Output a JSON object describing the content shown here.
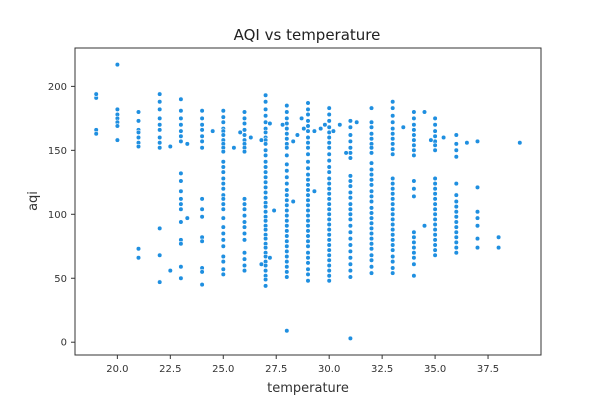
{
  "chart_data": {
    "type": "scatter",
    "title": "AQI vs temperature",
    "xlabel": "temperature",
    "ylabel": "aqi",
    "xlim": [
      18,
      40
    ],
    "ylim": [
      -10,
      230
    ],
    "xticks": [
      "20.0",
      "22.5",
      "25.0",
      "27.5",
      "30.0",
      "32.5",
      "35.0",
      "37.5"
    ],
    "xtick_values": [
      20.0,
      22.5,
      25.0,
      27.5,
      30.0,
      32.5,
      35.0,
      37.5
    ],
    "yticks": [
      "0",
      "50",
      "100",
      "150",
      "200"
    ],
    "ytick_values": [
      0,
      50,
      100,
      150,
      200
    ],
    "grid": false,
    "marker_color": "#1f8fe0",
    "points": [
      [
        19,
        166
      ],
      [
        19,
        163
      ],
      [
        19,
        191
      ],
      [
        19,
        194
      ],
      [
        20,
        217
      ],
      [
        20,
        182
      ],
      [
        20,
        178
      ],
      [
        20,
        175
      ],
      [
        20,
        172
      ],
      [
        20,
        169
      ],
      [
        20,
        158
      ],
      [
        21,
        180
      ],
      [
        21,
        173
      ],
      [
        21,
        166
      ],
      [
        21,
        164
      ],
      [
        21,
        160
      ],
      [
        21,
        156
      ],
      [
        21,
        153
      ],
      [
        21,
        73
      ],
      [
        21,
        66
      ],
      [
        22,
        194
      ],
      [
        22,
        188
      ],
      [
        22,
        182
      ],
      [
        22,
        175
      ],
      [
        22,
        170
      ],
      [
        22,
        166
      ],
      [
        22,
        160
      ],
      [
        22,
        156
      ],
      [
        22,
        152
      ],
      [
        22,
        89
      ],
      [
        22,
        68
      ],
      [
        22,
        47
      ],
      [
        22.5,
        153
      ],
      [
        22.5,
        56
      ],
      [
        23,
        190
      ],
      [
        23,
        181
      ],
      [
        23,
        175
      ],
      [
        23,
        170
      ],
      [
        23,
        165
      ],
      [
        23,
        161
      ],
      [
        23,
        157
      ],
      [
        23,
        132
      ],
      [
        23,
        126
      ],
      [
        23,
        118
      ],
      [
        23,
        112
      ],
      [
        23,
        108
      ],
      [
        23,
        104
      ],
      [
        23,
        94
      ],
      [
        23,
        80
      ],
      [
        23,
        77
      ],
      [
        23,
        59
      ],
      [
        23,
        50
      ],
      [
        23.3,
        155
      ],
      [
        23.3,
        97
      ],
      [
        24,
        181
      ],
      [
        24,
        175
      ],
      [
        24,
        170
      ],
      [
        24,
        166
      ],
      [
        24,
        161
      ],
      [
        24,
        157
      ],
      [
        24,
        152
      ],
      [
        24,
        112
      ],
      [
        24,
        104
      ],
      [
        24,
        98
      ],
      [
        24,
        82
      ],
      [
        24,
        79
      ],
      [
        24,
        58
      ],
      [
        24,
        55
      ],
      [
        24,
        45
      ],
      [
        24.5,
        165
      ],
      [
        25,
        181
      ],
      [
        25,
        176
      ],
      [
        25,
        172
      ],
      [
        25,
        167
      ],
      [
        25,
        165
      ],
      [
        25,
        162
      ],
      [
        25,
        158
      ],
      [
        25,
        155
      ],
      [
        25,
        152
      ],
      [
        25,
        149
      ],
      [
        25,
        141
      ],
      [
        25,
        137
      ],
      [
        25,
        133
      ],
      [
        25,
        128
      ],
      [
        25,
        124
      ],
      [
        25,
        120
      ],
      [
        25,
        115
      ],
      [
        25,
        112
      ],
      [
        25,
        108
      ],
      [
        25,
        104
      ],
      [
        25,
        97
      ],
      [
        25,
        90
      ],
      [
        25,
        85
      ],
      [
        25,
        80
      ],
      [
        25,
        75
      ],
      [
        25,
        67
      ],
      [
        25,
        63
      ],
      [
        25,
        57
      ],
      [
        25,
        53
      ],
      [
        25.5,
        152
      ],
      [
        26,
        180
      ],
      [
        26,
        175
      ],
      [
        26,
        171
      ],
      [
        26,
        166
      ],
      [
        26,
        162
      ],
      [
        26,
        158
      ],
      [
        26,
        155
      ],
      [
        26,
        152
      ],
      [
        26,
        149
      ],
      [
        26,
        112
      ],
      [
        26,
        108
      ],
      [
        26,
        104
      ],
      [
        26,
        99
      ],
      [
        26,
        94
      ],
      [
        26,
        90
      ],
      [
        26,
        85
      ],
      [
        26,
        80
      ],
      [
        26,
        70
      ],
      [
        26,
        65
      ],
      [
        26,
        60
      ],
      [
        26,
        56
      ],
      [
        25.8,
        164
      ],
      [
        26.3,
        160
      ],
      [
        27,
        193
      ],
      [
        27,
        188
      ],
      [
        27,
        182
      ],
      [
        27,
        177
      ],
      [
        27,
        172
      ],
      [
        27,
        167
      ],
      [
        27,
        164
      ],
      [
        27,
        160
      ],
      [
        27,
        158
      ],
      [
        27,
        155
      ],
      [
        27,
        150
      ],
      [
        27,
        146
      ],
      [
        27,
        141
      ],
      [
        27,
        137
      ],
      [
        27,
        133
      ],
      [
        27,
        129
      ],
      [
        27,
        125
      ],
      [
        27,
        121
      ],
      [
        27,
        117
      ],
      [
        27,
        113
      ],
      [
        27,
        109
      ],
      [
        27,
        106
      ],
      [
        27,
        102
      ],
      [
        27,
        98
      ],
      [
        27,
        95
      ],
      [
        27,
        91
      ],
      [
        27,
        88
      ],
      [
        27,
        84
      ],
      [
        27,
        81
      ],
      [
        27,
        77
      ],
      [
        27,
        74
      ],
      [
        27,
        70
      ],
      [
        27,
        67
      ],
      [
        27,
        63
      ],
      [
        27,
        60
      ],
      [
        27,
        56
      ],
      [
        27,
        52
      ],
      [
        27,
        49
      ],
      [
        27,
        44
      ],
      [
        26.8,
        158
      ],
      [
        26.8,
        61
      ],
      [
        27.2,
        66
      ],
      [
        27.2,
        171
      ],
      [
        27.4,
        103
      ],
      [
        28,
        185
      ],
      [
        28,
        180
      ],
      [
        28,
        175
      ],
      [
        28,
        171
      ],
      [
        28,
        167
      ],
      [
        28,
        163
      ],
      [
        28,
        159
      ],
      [
        28,
        155
      ],
      [
        28,
        152
      ],
      [
        28,
        146
      ],
      [
        28,
        139
      ],
      [
        28,
        134
      ],
      [
        28,
        129
      ],
      [
        28,
        124
      ],
      [
        28,
        119
      ],
      [
        28,
        115
      ],
      [
        28,
        111
      ],
      [
        28,
        107
      ],
      [
        28,
        103
      ],
      [
        28,
        99
      ],
      [
        28,
        95
      ],
      [
        28,
        91
      ],
      [
        28,
        87
      ],
      [
        28,
        83
      ],
      [
        28,
        79
      ],
      [
        28,
        75
      ],
      [
        28,
        71
      ],
      [
        28,
        67
      ],
      [
        28,
        63
      ],
      [
        28,
        59
      ],
      [
        28,
        55
      ],
      [
        28,
        51
      ],
      [
        28,
        9
      ],
      [
        27.8,
        170
      ],
      [
        28.3,
        157
      ],
      [
        28.5,
        162
      ],
      [
        28.7,
        175
      ],
      [
        28.8,
        167
      ],
      [
        28.3,
        110
      ],
      [
        29,
        187
      ],
      [
        29,
        182
      ],
      [
        29,
        178
      ],
      [
        29,
        173
      ],
      [
        29,
        169
      ],
      [
        29,
        165
      ],
      [
        29,
        160
      ],
      [
        29,
        156
      ],
      [
        29,
        152
      ],
      [
        29,
        147
      ],
      [
        29,
        141
      ],
      [
        29,
        136
      ],
      [
        29,
        131
      ],
      [
        29,
        127
      ],
      [
        29,
        123
      ],
      [
        29,
        119
      ],
      [
        29,
        115
      ],
      [
        29,
        111
      ],
      [
        29,
        107
      ],
      [
        29,
        103
      ],
      [
        29,
        99
      ],
      [
        29,
        95
      ],
      [
        29,
        91
      ],
      [
        29,
        87
      ],
      [
        29,
        83
      ],
      [
        29,
        79
      ],
      [
        29,
        75
      ],
      [
        29,
        70
      ],
      [
        29,
        66
      ],
      [
        29,
        62
      ],
      [
        29,
        57
      ],
      [
        29,
        53
      ],
      [
        29,
        48
      ],
      [
        29.3,
        165
      ],
      [
        29.3,
        118
      ],
      [
        29.6,
        167
      ],
      [
        30,
        183
      ],
      [
        30,
        178
      ],
      [
        30,
        173
      ],
      [
        30,
        168
      ],
      [
        30,
        164
      ],
      [
        30,
        160
      ],
      [
        30,
        156
      ],
      [
        30,
        152
      ],
      [
        30,
        147
      ],
      [
        30,
        142
      ],
      [
        30,
        137
      ],
      [
        30,
        133
      ],
      [
        30,
        128
      ],
      [
        30,
        124
      ],
      [
        30,
        120
      ],
      [
        30,
        116
      ],
      [
        30,
        112
      ],
      [
        30,
        108
      ],
      [
        30,
        104
      ],
      [
        30,
        100
      ],
      [
        30,
        96
      ],
      [
        30,
        92
      ],
      [
        30,
        88
      ],
      [
        30,
        84
      ],
      [
        30,
        80
      ],
      [
        30,
        76
      ],
      [
        30,
        72
      ],
      [
        30,
        68
      ],
      [
        30,
        64
      ],
      [
        30,
        60
      ],
      [
        30,
        56
      ],
      [
        30,
        52
      ],
      [
        30,
        48
      ],
      [
        29.8,
        170
      ],
      [
        30.2,
        165
      ],
      [
        30.5,
        170
      ],
      [
        31,
        173
      ],
      [
        31,
        168
      ],
      [
        31,
        162
      ],
      [
        31,
        157
      ],
      [
        31,
        152
      ],
      [
        31,
        148
      ],
      [
        31,
        144
      ],
      [
        31,
        130
      ],
      [
        31,
        126
      ],
      [
        31,
        122
      ],
      [
        31,
        117
      ],
      [
        31,
        113
      ],
      [
        31,
        108
      ],
      [
        31,
        104
      ],
      [
        31,
        100
      ],
      [
        31,
        96
      ],
      [
        31,
        91
      ],
      [
        31,
        86
      ],
      [
        31,
        81
      ],
      [
        31,
        76
      ],
      [
        31,
        71
      ],
      [
        31,
        66
      ],
      [
        31,
        61
      ],
      [
        31,
        56
      ],
      [
        31,
        51
      ],
      [
        31,
        3
      ],
      [
        30.8,
        148
      ],
      [
        31.3,
        172
      ],
      [
        32,
        183
      ],
      [
        32,
        172
      ],
      [
        32,
        168
      ],
      [
        32,
        163
      ],
      [
        32,
        159
      ],
      [
        32,
        155
      ],
      [
        32,
        152
      ],
      [
        32,
        148
      ],
      [
        32,
        140
      ],
      [
        32,
        135
      ],
      [
        32,
        131
      ],
      [
        32,
        127
      ],
      [
        32,
        123
      ],
      [
        32,
        118
      ],
      [
        32,
        114
      ],
      [
        32,
        110
      ],
      [
        32,
        105
      ],
      [
        32,
        101
      ],
      [
        32,
        97
      ],
      [
        32,
        93
      ],
      [
        32,
        89
      ],
      [
        32,
        85
      ],
      [
        32,
        81
      ],
      [
        32,
        77
      ],
      [
        32,
        73
      ],
      [
        32,
        68
      ],
      [
        32,
        64
      ],
      [
        32,
        59
      ],
      [
        32,
        54
      ],
      [
        33,
        188
      ],
      [
        33,
        183
      ],
      [
        33,
        177
      ],
      [
        33,
        172
      ],
      [
        33,
        167
      ],
      [
        33,
        163
      ],
      [
        33,
        159
      ],
      [
        33,
        155
      ],
      [
        33,
        151
      ],
      [
        33,
        147
      ],
      [
        33,
        128
      ],
      [
        33,
        124
      ],
      [
        33,
        120
      ],
      [
        33,
        116
      ],
      [
        33,
        112
      ],
      [
        33,
        108
      ],
      [
        33,
        104
      ],
      [
        33,
        100
      ],
      [
        33,
        96
      ],
      [
        33,
        92
      ],
      [
        33,
        88
      ],
      [
        33,
        84
      ],
      [
        33,
        80
      ],
      [
        33,
        76
      ],
      [
        33,
        72
      ],
      [
        33,
        67
      ],
      [
        33,
        63
      ],
      [
        33,
        58
      ],
      [
        33,
        54
      ],
      [
        33.5,
        168
      ],
      [
        34,
        180
      ],
      [
        34,
        175
      ],
      [
        34,
        170
      ],
      [
        34,
        166
      ],
      [
        34,
        162
      ],
      [
        34,
        158
      ],
      [
        34,
        154
      ],
      [
        34,
        150
      ],
      [
        34,
        146
      ],
      [
        34,
        126
      ],
      [
        34,
        120
      ],
      [
        34,
        114
      ],
      [
        34,
        86
      ],
      [
        34,
        82
      ],
      [
        34,
        78
      ],
      [
        34,
        74
      ],
      [
        34,
        70
      ],
      [
        34,
        66
      ],
      [
        34,
        61
      ],
      [
        34,
        52
      ],
      [
        34.5,
        180
      ],
      [
        34.5,
        91
      ],
      [
        35,
        175
      ],
      [
        35,
        170
      ],
      [
        35,
        165
      ],
      [
        35,
        161
      ],
      [
        35,
        157
      ],
      [
        35,
        154
      ],
      [
        35,
        150
      ],
      [
        35,
        128
      ],
      [
        35,
        124
      ],
      [
        35,
        120
      ],
      [
        35,
        116
      ],
      [
        35,
        112
      ],
      [
        35,
        108
      ],
      [
        35,
        104
      ],
      [
        35,
        100
      ],
      [
        35,
        96
      ],
      [
        35,
        92
      ],
      [
        35,
        88
      ],
      [
        35,
        84
      ],
      [
        35,
        80
      ],
      [
        35,
        76
      ],
      [
        35,
        72
      ],
      [
        35,
        68
      ],
      [
        34.8,
        158
      ],
      [
        35.4,
        160
      ],
      [
        36,
        162
      ],
      [
        36,
        155
      ],
      [
        36,
        150
      ],
      [
        36,
        145
      ],
      [
        36,
        124
      ],
      [
        36,
        115
      ],
      [
        36,
        110
      ],
      [
        36,
        106
      ],
      [
        36,
        102
      ],
      [
        36,
        98
      ],
      [
        36,
        94
      ],
      [
        36,
        90
      ],
      [
        36,
        86
      ],
      [
        36,
        82
      ],
      [
        36,
        78
      ],
      [
        36,
        74
      ],
      [
        36,
        70
      ],
      [
        36.5,
        156
      ],
      [
        37,
        157
      ],
      [
        37,
        121
      ],
      [
        37,
        102
      ],
      [
        37,
        97
      ],
      [
        37,
        91
      ],
      [
        37,
        81
      ],
      [
        37,
        74
      ],
      [
        38,
        82
      ],
      [
        38,
        74
      ],
      [
        39,
        156
      ]
    ]
  }
}
